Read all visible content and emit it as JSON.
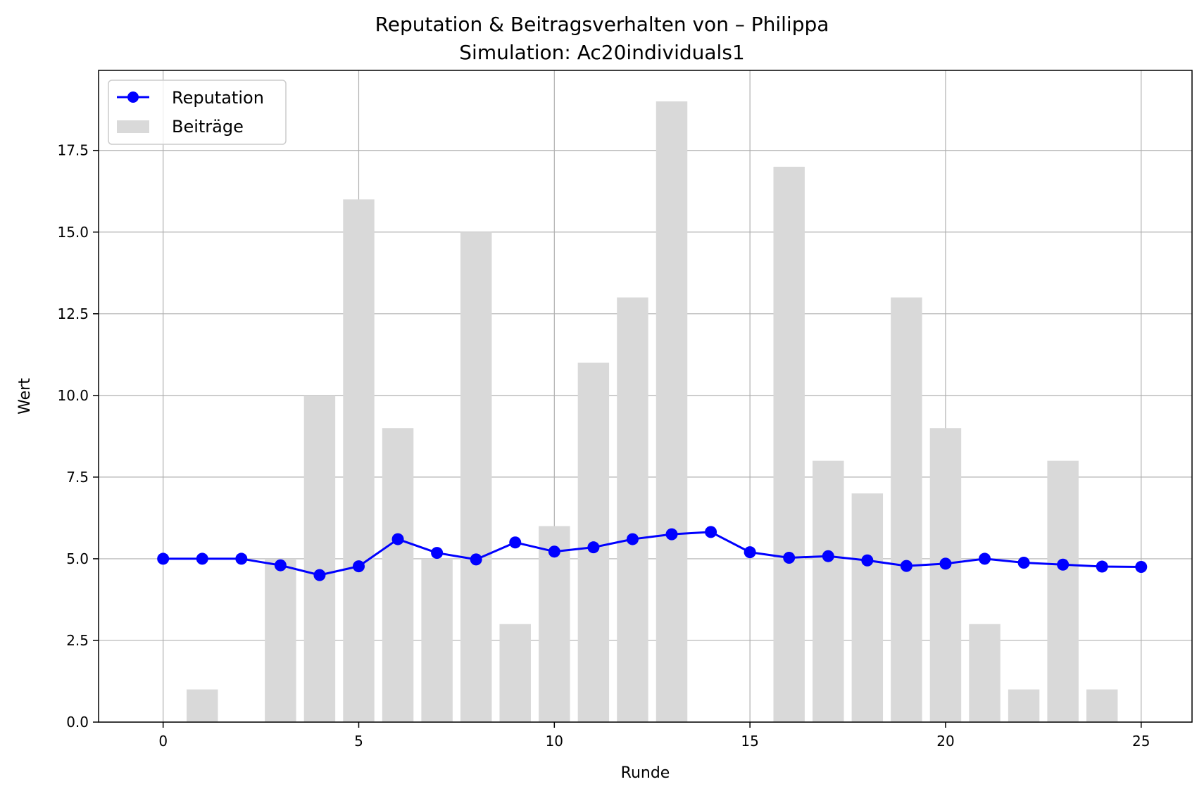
{
  "chart_data": {
    "type": "bar",
    "title": "Reputation & Beitragsverhalten von – Philippa",
    "subtitle": "Simulation: Ac20individuals1",
    "xlabel": "Runde",
    "ylabel": "Wert",
    "xlim": [
      -1.65,
      26.3
    ],
    "ylim": [
      0,
      19.95
    ],
    "xticks": [
      0,
      5,
      10,
      15,
      20,
      25
    ],
    "xtick_labels": [
      "0",
      "5",
      "10",
      "15",
      "20",
      "25"
    ],
    "yticks": [
      0,
      2.5,
      5,
      7.5,
      10,
      12.5,
      15,
      17.5
    ],
    "ytick_labels": [
      "0.0",
      "2.5",
      "5.0",
      "7.5",
      "10.0",
      "12.5",
      "15.0",
      "17.5"
    ],
    "grid": true,
    "legend_position": "top-left",
    "series": [
      {
        "name": "Beiträge",
        "kind": "bar",
        "color": "#d9d9d9",
        "x": [
          0,
          1,
          2,
          3,
          4,
          5,
          6,
          7,
          8,
          9,
          10,
          11,
          12,
          13,
          14,
          15,
          16,
          17,
          18,
          19,
          20,
          21,
          22,
          23,
          24,
          25
        ],
        "values": [
          0,
          1,
          0,
          5,
          10,
          16,
          9,
          5,
          15,
          3,
          6,
          11,
          13,
          19,
          0,
          0,
          17,
          8,
          7,
          13,
          9,
          3,
          1,
          8,
          1,
          0
        ]
      },
      {
        "name": "Reputation",
        "kind": "line",
        "color": "#0000ff",
        "marker": "circle",
        "x": [
          0,
          1,
          2,
          3,
          4,
          5,
          6,
          7,
          8,
          9,
          10,
          11,
          12,
          13,
          14,
          15,
          16,
          17,
          18,
          19,
          20,
          21,
          22,
          23,
          24,
          25
        ],
        "values": [
          5.0,
          5.0,
          5.0,
          4.8,
          4.5,
          4.77,
          5.6,
          5.18,
          4.98,
          5.5,
          5.22,
          5.35,
          5.6,
          5.75,
          5.82,
          5.2,
          5.03,
          5.08,
          4.95,
          4.78,
          4.85,
          5.0,
          4.88,
          4.82,
          4.76,
          4.75
        ]
      }
    ]
  }
}
